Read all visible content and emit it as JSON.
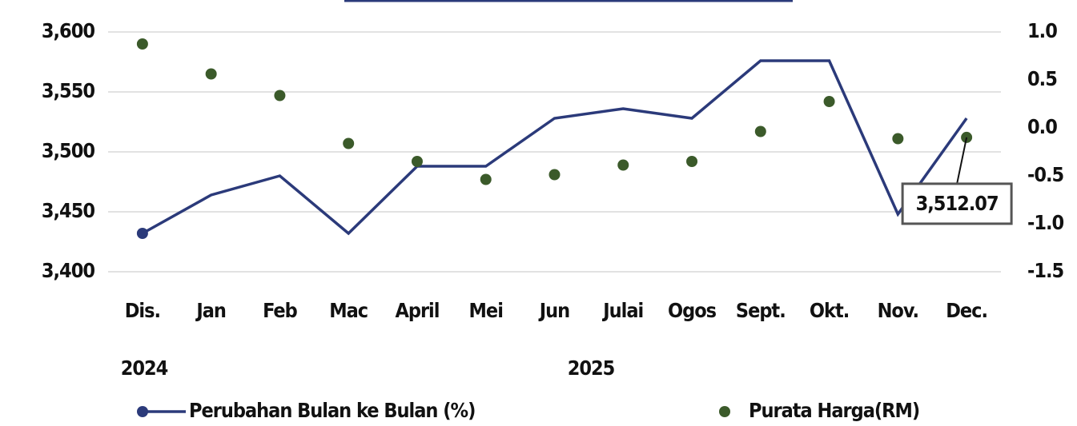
{
  "chart_data": {
    "type": "line",
    "categories": [
      "Dis.",
      "Jan",
      "Feb",
      "Mac",
      "April",
      "Mei",
      "Jun",
      "Julai",
      "Ogos",
      "Sept.",
      "Okt.",
      "Nov.",
      "Dec."
    ],
    "annotations": [
      "2024",
      "2025"
    ],
    "series": [
      {
        "name": "Perubahan Bulan ke Bulan (%)",
        "color": "#2b3a7a",
        "type": "line",
        "axis": "y2",
        "values": [
          -1.1,
          -0.7,
          -0.5,
          -1.1,
          -0.4,
          -0.4,
          0.1,
          0.2,
          0.1,
          0.7,
          0.7,
          -0.9,
          0.1
        ]
      },
      {
        "name": "Purata Harga(RM)",
        "color": "#3b5a2a",
        "type": "scatter",
        "values": [
          3590,
          3565,
          3547,
          3507,
          3492,
          3477,
          3481,
          3489,
          3492,
          3517,
          3542,
          3511,
          3512.07
        ],
        "value_labels": [
          null,
          null,
          null,
          null,
          null,
          null,
          null,
          null,
          null,
          null,
          null,
          null,
          "3,512.07"
        ]
      }
    ],
    "ylim": [
      3400,
      3600
    ],
    "yticks": [
      {
        "value": 3400,
        "label": "3,400"
      },
      {
        "value": 3450,
        "label": "3,450"
      },
      {
        "value": 3500,
        "label": "3,500"
      },
      {
        "value": 3550,
        "label": "3,550"
      },
      {
        "value": 3600,
        "label": "3,600"
      }
    ],
    "y2lim": [
      -1.5,
      1.0
    ],
    "y2ticks": [
      {
        "value": -1.5,
        "label": "-1.5"
      },
      {
        "value": -1.0,
        "label": "-1.0"
      },
      {
        "value": -0.5,
        "label": "-0.5"
      },
      {
        "value": 0,
        "label": "0.0"
      },
      {
        "value": 0.5,
        "label": "0.5"
      },
      {
        "value": 1.0,
        "label": "1.0"
      }
    ],
    "grid": true
  }
}
